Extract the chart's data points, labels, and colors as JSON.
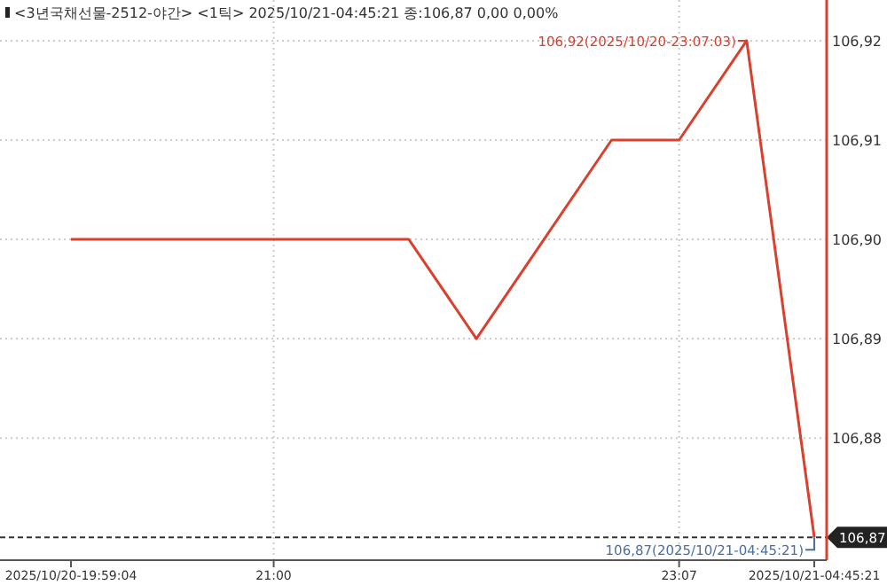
{
  "chart_data": {
    "type": "line",
    "title": "<3년국채선물-2512-야간> <1틱> 2025/10/21-04:45:21 종:106,87 0,00 0,00%",
    "categories": [
      "2025/10/20-19:59:04",
      null,
      null,
      "21:00",
      null,
      null,
      null,
      null,
      null,
      "23:07",
      null,
      "2025/10/21-04:45:21"
    ],
    "series": [
      {
        "color": "#d9412e",
        "values": [
          106.9,
          106.9,
          106.9,
          106.9,
          106.9,
          106.9,
          106.89,
          106.9,
          106.91,
          106.91,
          106.92,
          106.87
        ]
      }
    ],
    "ylim": [
      106.8677,
      106.9241
    ],
    "yticks": [
      {
        "value": 106.88,
        "label": "106,88"
      },
      {
        "value": 106.89,
        "label": "106,89"
      },
      {
        "value": 106.9,
        "label": "106,90"
      },
      {
        "value": 106.91,
        "label": "106,91"
      },
      {
        "value": 106.92,
        "label": "106,92"
      }
    ],
    "grid": true,
    "marker": "none",
    "line_style": "solid",
    "ref_lines": [
      {
        "axis": "y",
        "value": 106.87,
        "label": "106,87",
        "color": "#333333",
        "line_style": "dashed"
      }
    ],
    "annotations": [
      "106,92(2025/10/20-23:07:03)",
      "106,87(2025/10/21-04:45:21)"
    ]
  }
}
